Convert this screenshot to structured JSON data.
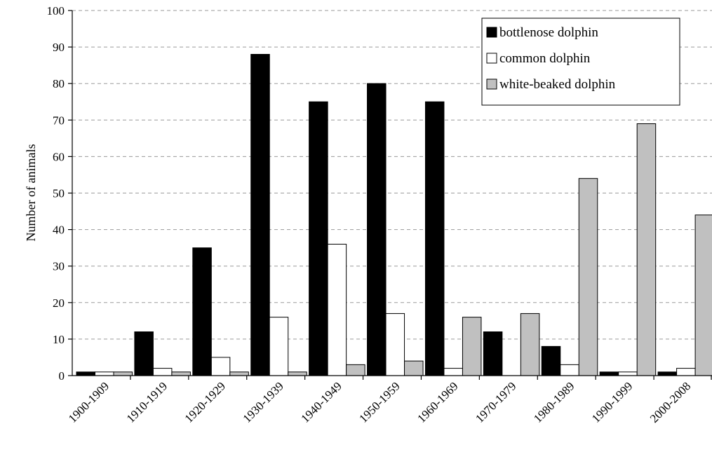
{
  "chart_data": {
    "type": "bar",
    "title": "",
    "xlabel": "",
    "ylabel": "Number of animals",
    "ylim": [
      0,
      100
    ],
    "yticks": [
      0,
      10,
      20,
      30,
      40,
      50,
      60,
      70,
      80,
      90,
      100
    ],
    "grid": "horizontal dashed",
    "legend_position": "top-right",
    "categories": [
      "1900-1909",
      "1910-1919",
      "1920-1929",
      "1930-1939",
      "1940-1949",
      "1950-1959",
      "1960-1969",
      "1970-1979",
      "1980-1989",
      "1990-1999",
      "2000-2008"
    ],
    "series": [
      {
        "name": "bottlenose dolphin",
        "color": "#000000",
        "values": [
          1,
          12,
          35,
          88,
          75,
          80,
          75,
          12,
          8,
          1,
          1
        ]
      },
      {
        "name": "common dolphin",
        "color": "#ffffff",
        "values": [
          1,
          2,
          5,
          16,
          36,
          17,
          2,
          0,
          3,
          1,
          2
        ]
      },
      {
        "name": "white-beaked dolphin",
        "color": "#c0c0c0",
        "values": [
          1,
          1,
          1,
          1,
          3,
          4,
          16,
          17,
          54,
          69,
          44
        ]
      }
    ]
  }
}
